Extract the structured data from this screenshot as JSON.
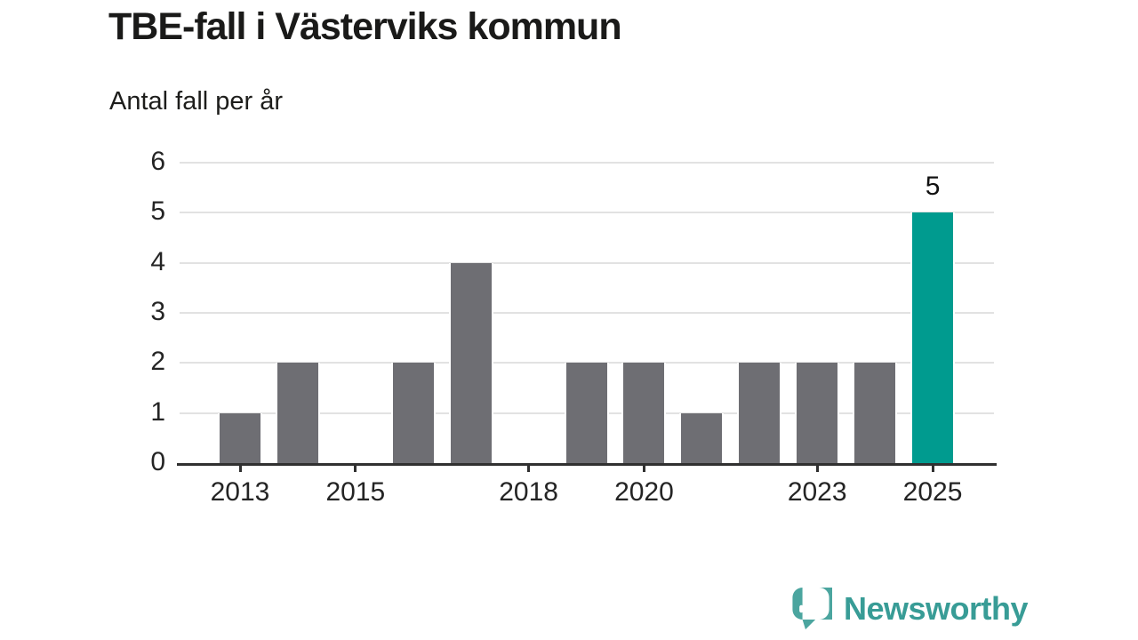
{
  "title": "TBE-fall i Västerviks kommun",
  "subtitle": "Antal fall per år",
  "branding": {
    "name": "Newsworthy",
    "icon": "newsworthy-speech-bubble-chart-icon",
    "icon_color": "#4ba59f",
    "text_color": "#389c96"
  },
  "colors": {
    "bar": "#6e6e73",
    "highlight": "#009b8f",
    "gridline": "#e2e2e2",
    "axis": "#303030",
    "text": "#242424"
  },
  "chart_data": {
    "type": "bar",
    "title": "TBE-fall i Västerviks kommun",
    "ylabel": "Antal fall per år",
    "xlabel": "",
    "categories": [
      2013,
      2014,
      2015,
      2016,
      2017,
      2018,
      2019,
      2020,
      2021,
      2022,
      2023,
      2024,
      2025
    ],
    "values": [
      1,
      2,
      0,
      2,
      4,
      0,
      2,
      2,
      1,
      2,
      2,
      2,
      5
    ],
    "highlight_category": 2025,
    "annotations": [
      {
        "category": 2025,
        "text": "5"
      }
    ],
    "y_ticks": [
      0,
      1,
      2,
      3,
      4,
      5,
      6
    ],
    "x_tick_labels": [
      "2013",
      "2015",
      "2018",
      "2020",
      "2023",
      "2025"
    ],
    "ylim": [
      0,
      6
    ],
    "grid": true,
    "legend": false,
    "bar_color": "#6e6e73",
    "highlight_color": "#009b8f"
  }
}
